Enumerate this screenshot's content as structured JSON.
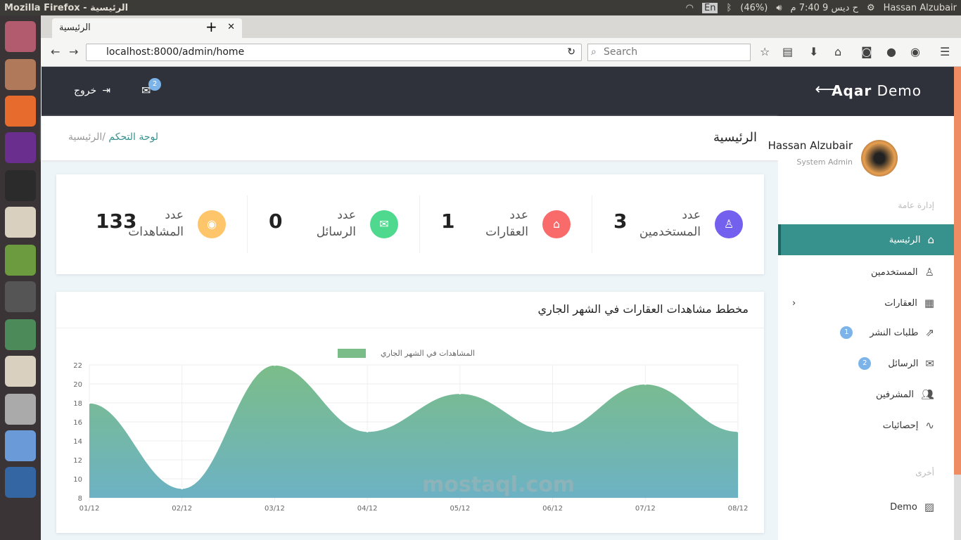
{
  "os": {
    "window_title": "Mozilla Firefox - الرئيسية",
    "language": "En",
    "battery": "(46%)",
    "clock": "ح ديس 9 7:40 م",
    "user": "Hassan Alzubair"
  },
  "browser": {
    "tab_title": "الرئيسية",
    "url": "localhost:8000/admin/home",
    "search_placeholder": "Search"
  },
  "header": {
    "brand_bold": "Aqar",
    "brand_rest": " Demo",
    "logout": "خروج",
    "mail_count": "2"
  },
  "page": {
    "title": "الرئيسية",
    "breadcrumb_home": "لوحة التحكم",
    "breadcrumb_sep": "/",
    "breadcrumb_current": "الرئيسية"
  },
  "profile": {
    "name": "Hassan Alzubair",
    "role": "System Admin"
  },
  "sidebar": {
    "section1": "إدارة عامة",
    "section2": "أخرى",
    "items": [
      {
        "label": "الرئيسية",
        "icon": "home-icon",
        "active": true
      },
      {
        "label": "المستخدمين",
        "icon": "user-icon"
      },
      {
        "label": "العقارات",
        "icon": "building-icon"
      },
      {
        "label": "طلبات النشر",
        "icon": "share-icon",
        "badge": "1"
      },
      {
        "label": "الرسائل",
        "icon": "envelope-icon",
        "badge": "2"
      },
      {
        "label": "المشرفين",
        "icon": "users-icon"
      },
      {
        "label": "إحصائيات",
        "icon": "chart-line-icon"
      },
      {
        "label": "Demo",
        "icon": "image-icon"
      }
    ]
  },
  "stats": [
    {
      "label1": "عدد",
      "label2": "المستخدمين",
      "value": "3",
      "color": "#7460ee",
      "icon": "user-icon"
    },
    {
      "label1": "عدد",
      "label2": "العقارات",
      "value": "1",
      "color": "#f96a6a",
      "icon": "home-icon"
    },
    {
      "label1": "عدد",
      "label2": "الرسائل",
      "value": "0",
      "color": "#4fd98f",
      "icon": "envelope-icon"
    },
    {
      "label1": "عدد",
      "label2": "المشاهدات",
      "value": "133",
      "color": "#ffc56a",
      "icon": "eye-icon"
    }
  ],
  "chart_title": "مخطط مشاهدات العقارات في الشهر الجاري",
  "chart_data": {
    "type": "area",
    "categories": [
      "01/12",
      "02/12",
      "03/12",
      "04/12",
      "05/12",
      "06/12",
      "07/12",
      "08/12"
    ],
    "series": [
      {
        "name": "المشاهدات في الشهر الجاري",
        "values": [
          18,
          9,
          22,
          15,
          19,
          15,
          20,
          15
        ]
      }
    ],
    "ylim": [
      8,
      22
    ],
    "yticks": [
      "8",
      "10",
      "12",
      "14",
      "16",
      "18",
      "20",
      "22"
    ],
    "grid": true,
    "legend": "top",
    "colors": [
      "#7bbd88",
      "#6cb2c4"
    ]
  },
  "watermark": "mostaql.com"
}
